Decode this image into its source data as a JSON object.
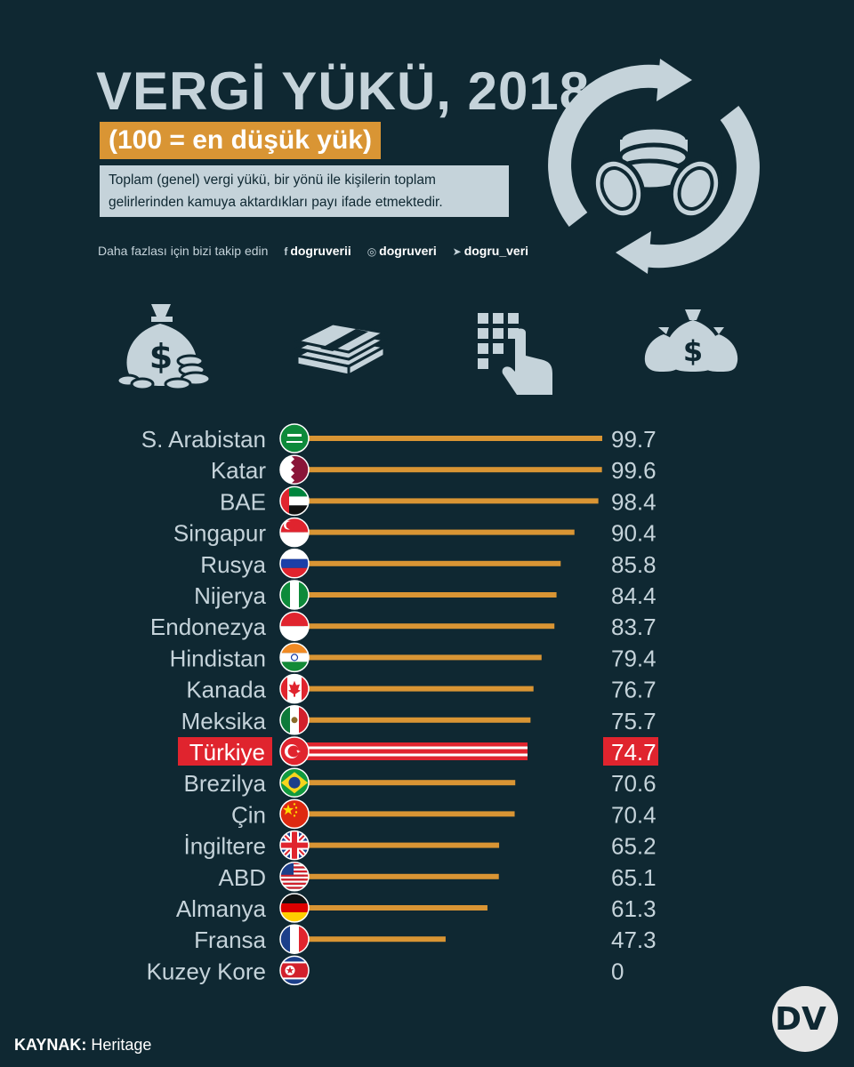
{
  "header": {
    "title": "VERGİ YÜKÜ, 2018",
    "subtitle": "(100 = en düşük yük)",
    "description": "Toplam (genel) vergi yükü, bir yönü ile kişilerin toplam gelirlerinden kamuya aktardıkları payı ifade etmektedir.",
    "follow_text": "Daha fazlası için bizi takip edin",
    "handles": [
      {
        "icon": "facebook-icon",
        "glyph": "f",
        "text": "dogruverii"
      },
      {
        "icon": "instagram-icon",
        "glyph": "◎",
        "text": "dogruveri"
      },
      {
        "icon": "twitter-icon",
        "glyph": "➤",
        "text": "dogru_veri"
      }
    ]
  },
  "icons": [
    "money-bag-coins-icon",
    "cash-stack-icon",
    "keypad-finger-icon",
    "money-bags-icon"
  ],
  "colors": {
    "background": "#0f2832",
    "accent": "#d99534",
    "light": "#c5d3da",
    "highlight": "#e0242e"
  },
  "chart_data": {
    "type": "bar",
    "orientation": "horizontal",
    "categories": [
      "S. Arabistan",
      "Katar",
      "BAE",
      "Singapur",
      "Rusya",
      "Nijerya",
      "Endonezya",
      "Hindistan",
      "Kanada",
      "Meksika",
      "Türkiye",
      "Brezilya",
      "Çin",
      "İngiltere",
      "ABD",
      "Almanya",
      "Fransa",
      "Kuzey Kore"
    ],
    "values": [
      99.7,
      99.6,
      98.4,
      90.4,
      85.8,
      84.4,
      83.7,
      79.4,
      76.7,
      75.7,
      74.7,
      70.6,
      70.4,
      65.2,
      65.1,
      61.3,
      47.3,
      0
    ],
    "value_labels": [
      "99.7",
      "99.6",
      "98.4",
      "90.4",
      "85.8",
      "84.4",
      "83.7",
      "79.4",
      "76.7",
      "75.7",
      "74.7",
      "70.6",
      "70.4",
      "65.2",
      "65.1",
      "61.3",
      "47.3",
      "0"
    ],
    "flags": [
      "saudi-arabia-flag",
      "qatar-flag",
      "uae-flag",
      "singapore-flag",
      "russia-flag",
      "nigeria-flag",
      "indonesia-flag",
      "india-flag",
      "canada-flag",
      "mexico-flag",
      "turkey-flag",
      "brazil-flag",
      "china-flag",
      "uk-flag",
      "usa-flag",
      "germany-flag",
      "france-flag",
      "north-korea-flag"
    ],
    "highlight": "Türkiye",
    "xlim": [
      0,
      100
    ]
  },
  "footer": {
    "source_label": "KAYNAK:",
    "source_value": "Heritage",
    "logo_text": "DV"
  }
}
